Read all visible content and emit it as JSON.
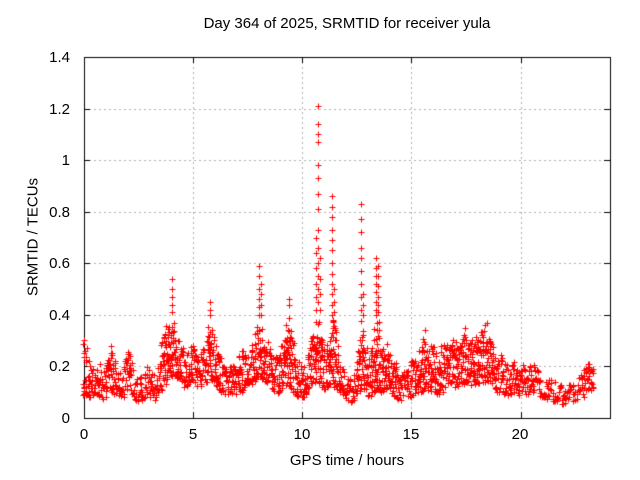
{
  "chart_data": {
    "type": "scatter",
    "title": "Day 364 of 2025, SRMTID for receiver yula",
    "xlabel": "GPS time / hours",
    "ylabel": "SRMTID / TECUs",
    "xlim": [
      0,
      24.1
    ],
    "ylim": [
      0,
      1.4
    ],
    "xticks": [
      0,
      5,
      10,
      15,
      20
    ],
    "yticks": [
      0,
      0.2,
      0.4,
      0.6,
      0.8,
      1.0,
      1.2,
      1.4
    ],
    "xtick_labels": [
      "0",
      "5",
      "10",
      "15",
      "20"
    ],
    "ytick_labels": [
      "0",
      "0.2",
      "0.4",
      "0.6",
      "0.8",
      "1",
      "1.2",
      "1.4"
    ],
    "grid": true,
    "legend": "none",
    "marker": "plus",
    "marker_color": "#ff0000",
    "grid_color": "#b0b0b0",
    "border_color": "#000000",
    "band": {
      "x0": 0.0,
      "dx": 0.1,
      "ymin": [
        0.09,
        0.08,
        0.09,
        0.08,
        0.08,
        0.08,
        0.07,
        0.08,
        0.08,
        0.07,
        0.08,
        0.09,
        0.1,
        0.1,
        0.09,
        0.08,
        0.07,
        0.07,
        0.08,
        0.09,
        0.1,
        0.1,
        0.09,
        0.07,
        0.06,
        0.06,
        0.06,
        0.07,
        0.07,
        0.08,
        0.08,
        0.07,
        0.07,
        0.08,
        0.09,
        0.1,
        0.12,
        0.13,
        0.14,
        0.15,
        0.16,
        0.17,
        0.16,
        0.15,
        0.14,
        0.13,
        0.12,
        0.12,
        0.12,
        0.13,
        0.13,
        0.13,
        0.12,
        0.12,
        0.12,
        0.13,
        0.14,
        0.15,
        0.15,
        0.14,
        0.13,
        0.12,
        0.11,
        0.1,
        0.1,
        0.09,
        0.09,
        0.08,
        0.08,
        0.09,
        0.09,
        0.1,
        0.1,
        0.11,
        0.11,
        0.11,
        0.12,
        0.13,
        0.14,
        0.15,
        0.16,
        0.16,
        0.15,
        0.14,
        0.13,
        0.12,
        0.11,
        0.1,
        0.1,
        0.09,
        0.09,
        0.1,
        0.11,
        0.12,
        0.12,
        0.11,
        0.1,
        0.09,
        0.08,
        0.08,
        0.08,
        0.08,
        0.09,
        0.1,
        0.11,
        0.12,
        0.13,
        0.14,
        0.13,
        0.12,
        0.11,
        0.11,
        0.12,
        0.13,
        0.13,
        0.12,
        0.11,
        0.1,
        0.09,
        0.08,
        0.07,
        0.06,
        0.06,
        0.06,
        0.07,
        0.08,
        0.1,
        0.11,
        0.1,
        0.09,
        0.08,
        0.08,
        0.09,
        0.1,
        0.11,
        0.11,
        0.1,
        0.09,
        0.09,
        0.1,
        0.1,
        0.09,
        0.08,
        0.08,
        0.07,
        0.07,
        0.07,
        0.07,
        0.08,
        0.08,
        0.08,
        0.09,
        0.09,
        0.1,
        0.1,
        0.1,
        0.11,
        0.11,
        0.1,
        0.1,
        0.1,
        0.09,
        0.09,
        0.1,
        0.1,
        0.11,
        0.11,
        0.11,
        0.12,
        0.12,
        0.12,
        0.12,
        0.12,
        0.13,
        0.13,
        0.13,
        0.12,
        0.12,
        0.12,
        0.13,
        0.13,
        0.13,
        0.13,
        0.14,
        0.14,
        0.14,
        0.13,
        0.12,
        0.11,
        0.1,
        0.1,
        0.1,
        0.1,
        0.09,
        0.09,
        0.09,
        0.09,
        0.1,
        0.1,
        0.09,
        0.09,
        0.09,
        0.09,
        0.09,
        0.1,
        0.1,
        0.1,
        0.09,
        0.09,
        0.08,
        0.08,
        0.08,
        0.07,
        0.07,
        0.07,
        0.06,
        0.06,
        0.06,
        0.05,
        0.05,
        0.05,
        0.05,
        0.06,
        0.06,
        0.06,
        0.06,
        0.07,
        0.07,
        0.08,
        0.08,
        0.09,
        0.09,
        0.1,
        0.1
      ],
      "ymax": [
        0.31,
        0.28,
        0.24,
        0.22,
        0.2,
        0.18,
        0.19,
        0.22,
        0.2,
        0.18,
        0.2,
        0.24,
        0.27,
        0.28,
        0.24,
        0.2,
        0.18,
        0.17,
        0.2,
        0.23,
        0.26,
        0.27,
        0.22,
        0.18,
        0.16,
        0.15,
        0.16,
        0.17,
        0.18,
        0.2,
        0.19,
        0.18,
        0.17,
        0.19,
        0.22,
        0.26,
        0.3,
        0.33,
        0.36,
        0.38,
        0.38,
        0.37,
        0.35,
        0.33,
        0.3,
        0.28,
        0.26,
        0.25,
        0.26,
        0.28,
        0.3,
        0.28,
        0.26,
        0.25,
        0.26,
        0.28,
        0.32,
        0.36,
        0.38,
        0.34,
        0.3,
        0.27,
        0.25,
        0.24,
        0.22,
        0.21,
        0.2,
        0.2,
        0.21,
        0.22,
        0.24,
        0.26,
        0.28,
        0.28,
        0.26,
        0.25,
        0.27,
        0.3,
        0.33,
        0.36,
        0.38,
        0.38,
        0.36,
        0.33,
        0.3,
        0.28,
        0.26,
        0.25,
        0.24,
        0.24,
        0.25,
        0.28,
        0.32,
        0.38,
        0.42,
        0.36,
        0.3,
        0.26,
        0.23,
        0.21,
        0.2,
        0.21,
        0.23,
        0.26,
        0.3,
        0.34,
        0.38,
        0.38,
        0.36,
        0.32,
        0.28,
        0.27,
        0.3,
        0.34,
        0.38,
        0.36,
        0.3,
        0.26,
        0.22,
        0.19,
        0.17,
        0.16,
        0.15,
        0.16,
        0.18,
        0.24,
        0.32,
        0.38,
        0.34,
        0.28,
        0.24,
        0.24,
        0.3,
        0.36,
        0.4,
        0.38,
        0.32,
        0.28,
        0.27,
        0.3,
        0.28,
        0.26,
        0.24,
        0.22,
        0.2,
        0.19,
        0.18,
        0.19,
        0.2,
        0.21,
        0.22,
        0.23,
        0.24,
        0.25,
        0.26,
        0.28,
        0.32,
        0.3,
        0.28,
        0.3,
        0.28,
        0.26,
        0.25,
        0.26,
        0.28,
        0.3,
        0.29,
        0.28,
        0.3,
        0.31,
        0.3,
        0.29,
        0.3,
        0.32,
        0.34,
        0.33,
        0.31,
        0.3,
        0.31,
        0.33,
        0.32,
        0.33,
        0.34,
        0.36,
        0.37,
        0.35,
        0.33,
        0.3,
        0.27,
        0.25,
        0.24,
        0.25,
        0.24,
        0.22,
        0.21,
        0.2,
        0.21,
        0.22,
        0.21,
        0.2,
        0.2,
        0.21,
        0.2,
        0.19,
        0.2,
        0.22,
        0.22,
        0.2,
        0.19,
        0.18,
        0.17,
        0.16,
        0.16,
        0.15,
        0.15,
        0.14,
        0.14,
        0.13,
        0.13,
        0.12,
        0.12,
        0.12,
        0.13,
        0.13,
        0.14,
        0.14,
        0.15,
        0.16,
        0.18,
        0.19,
        0.2,
        0.21,
        0.22,
        0.2
      ]
    },
    "columns": [
      {
        "x": 4.05,
        "ys": [
          0.41,
          0.44,
          0.47,
          0.5,
          0.54
        ]
      },
      {
        "x": 5.78,
        "ys": [
          0.4,
          0.42,
          0.45
        ]
      },
      {
        "x": 8.03,
        "ys": [
          0.4,
          0.43,
          0.46,
          0.5,
          0.55,
          0.59
        ]
      },
      {
        "x": 8.12,
        "ys": [
          0.4,
          0.44,
          0.48,
          0.52
        ]
      },
      {
        "x": 9.38,
        "ys": [
          0.44,
          0.46
        ]
      },
      {
        "x": 10.62,
        "ys": [
          0.42,
          0.47,
          0.52,
          0.58,
          0.64,
          0.7
        ]
      },
      {
        "x": 10.72,
        "ys": [
          0.45,
          0.5,
          0.55,
          0.6,
          0.66,
          0.73,
          0.81,
          0.87,
          0.93,
          0.98,
          1.07,
          1.1,
          1.14,
          1.21
        ]
      },
      {
        "x": 10.82,
        "ys": [
          0.42,
          0.48,
          0.54,
          0.62
        ]
      },
      {
        "x": 11.35,
        "ys": [
          0.4,
          0.44,
          0.48,
          0.52,
          0.56,
          0.6,
          0.65,
          0.69,
          0.73,
          0.78,
          0.82,
          0.86
        ]
      },
      {
        "x": 11.45,
        "ys": [
          0.41,
          0.45,
          0.5
        ]
      },
      {
        "x": 12.68,
        "ys": [
          0.42,
          0.47,
          0.52,
          0.57,
          0.62,
          0.66,
          0.72,
          0.77,
          0.83
        ]
      },
      {
        "x": 12.78,
        "ys": [
          0.4,
          0.44,
          0.48
        ]
      },
      {
        "x": 13.38,
        "ys": [
          0.42,
          0.45,
          0.49,
          0.52,
          0.55,
          0.58,
          0.62
        ]
      },
      {
        "x": 13.48,
        "ys": [
          0.41,
          0.44,
          0.47,
          0.51,
          0.55,
          0.59
        ]
      },
      {
        "x": 15.62,
        "ys": [
          0.34
        ]
      },
      {
        "x": 17.45,
        "ys": [
          0.35
        ]
      },
      {
        "x": 18.45,
        "ys": [
          0.37
        ]
      }
    ]
  }
}
